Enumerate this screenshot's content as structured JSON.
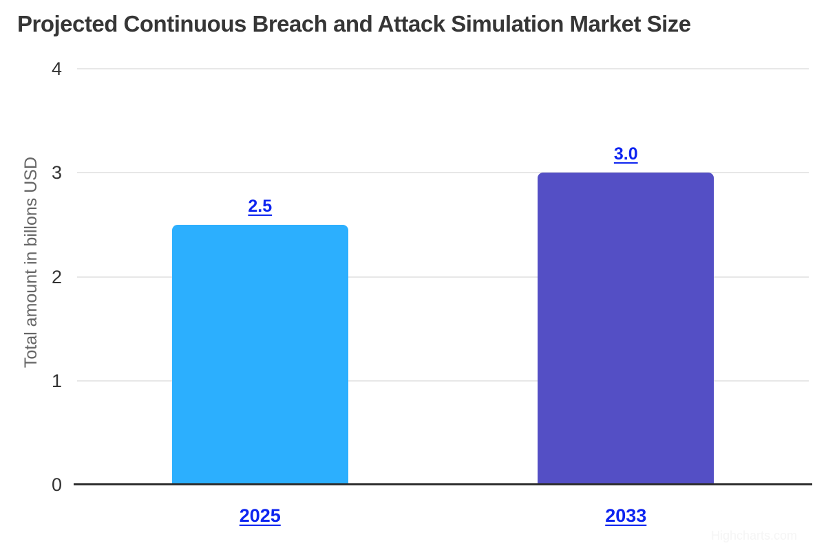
{
  "chart_data": {
    "type": "bar",
    "title": "Projected Continuous Breach and Attack Simulation Market Size",
    "categories": [
      "2025",
      "2033"
    ],
    "values": [
      2.5,
      3.0
    ],
    "data_labels": [
      "2.5",
      "3.0"
    ],
    "xlabel": "",
    "ylabel": "Total amount in billons USD",
    "ylim": [
      0,
      4
    ],
    "yticks": [
      0,
      1,
      2,
      3,
      4
    ],
    "grid": true,
    "legend": false,
    "bar_colors": [
      "#2CAFFE",
      "#544FC5"
    ],
    "label_color": "#0d24f0",
    "title_color": "#363636",
    "axis_color": "#2e2e2e",
    "gridline_color": "#e7e7e7",
    "watermark": "Highcharts.com"
  }
}
